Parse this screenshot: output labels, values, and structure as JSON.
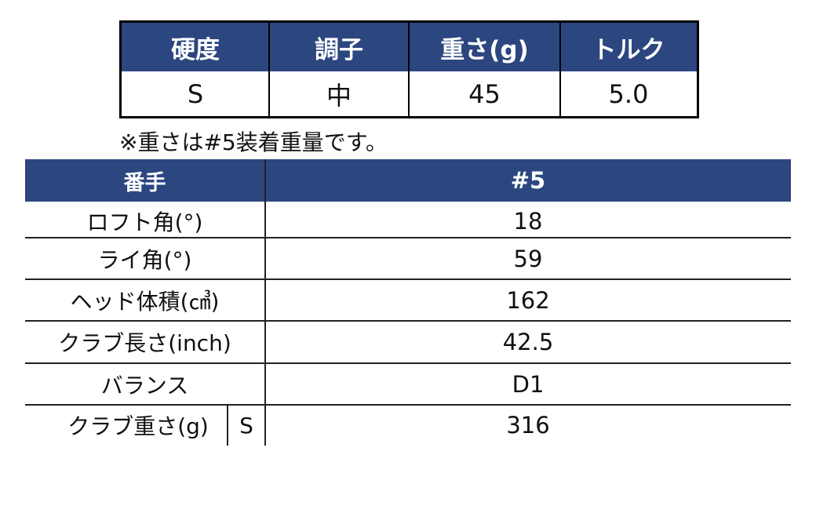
{
  "spec_table": {
    "headers": [
      "硬度",
      "調子",
      "重さ(g)",
      "トルク"
    ],
    "values": [
      "S",
      "中",
      "45",
      "5.0"
    ]
  },
  "note": "※重さは#5装着重量です。",
  "detail_table": {
    "header": {
      "label": "番手",
      "value": "#5"
    },
    "rows": [
      {
        "label": "ロフト角(°)",
        "value": "18"
      },
      {
        "label": "ライ角(°)",
        "value": "59"
      },
      {
        "label": "ヘッド体積(㎤)",
        "value": "162"
      },
      {
        "label": "クラブ長さ(inch)",
        "value": "42.5"
      },
      {
        "label": "バランス",
        "value": "D1"
      },
      {
        "label": "クラブ重さ(g)",
        "sub": "S",
        "value": "316"
      }
    ]
  },
  "colors": {
    "header_bg": "#2c4680"
  }
}
